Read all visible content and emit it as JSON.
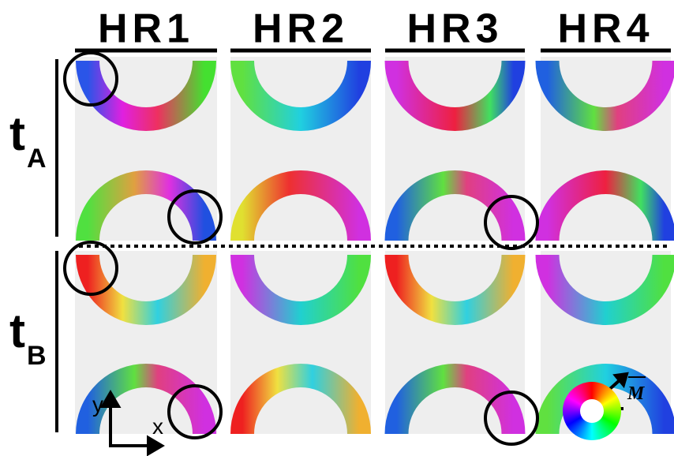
{
  "columns": [
    "HR1",
    "HR2",
    "HR3",
    "HR4"
  ],
  "rows": [
    {
      "label": "t",
      "subscript": "A"
    },
    {
      "label": "t",
      "subscript": "B"
    }
  ],
  "axes": {
    "y": "y",
    "x": "x"
  },
  "legend": {
    "label": "M"
  }
}
